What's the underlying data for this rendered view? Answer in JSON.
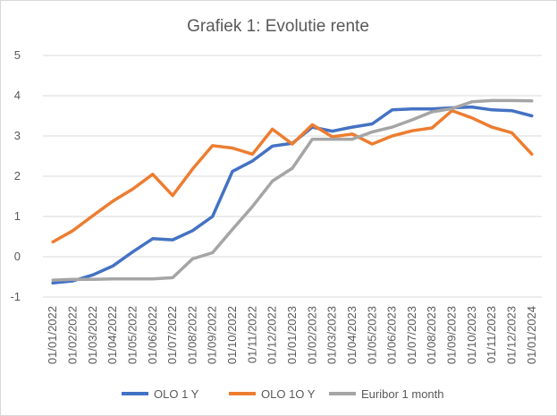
{
  "chart_data": {
    "type": "line",
    "title": "Grafiek 1: Evolutie rente",
    "xlabel": "",
    "ylabel": "",
    "ylim": [
      -1,
      5
    ],
    "y_ticks": [
      "-1",
      "0",
      "1",
      "2",
      "3",
      "4",
      "5"
    ],
    "grid": true,
    "legend_position": "bottom",
    "x": [
      "01/01/2022",
      "01/02/2022",
      "01/03/2022",
      "01/04/2022",
      "01/05/2022",
      "01/06/2022",
      "01/07/2022",
      "01/08/2022",
      "01/09/2022",
      "01/10/2022",
      "01/11/2022",
      "01/12/2022",
      "01/01/2023",
      "01/02/2023",
      "01/03/2023",
      "01/04/2023",
      "01/05/2023",
      "01/06/2023",
      "01/07/2023",
      "01/08/2023",
      "01/09/2023",
      "01/10/2023",
      "01/11/2023",
      "01/12/2023",
      "01/01/2024"
    ],
    "series": [
      {
        "name": "OLO 1 Y",
        "color": "#4472C4",
        "values": [
          -0.65,
          -0.6,
          -0.45,
          -0.23,
          0.12,
          0.45,
          0.42,
          0.65,
          1.0,
          2.12,
          2.38,
          2.75,
          2.82,
          3.22,
          3.12,
          3.22,
          3.3,
          3.65,
          3.67,
          3.67,
          3.7,
          3.72,
          3.65,
          3.63,
          3.5
        ]
      },
      {
        "name": "OLO 1O Y",
        "color": "#ED7D31",
        "values": [
          0.37,
          0.65,
          1.02,
          1.38,
          1.68,
          2.05,
          1.52,
          2.18,
          2.76,
          2.7,
          2.55,
          3.17,
          2.8,
          3.28,
          2.98,
          3.05,
          2.8,
          3.0,
          3.13,
          3.2,
          3.63,
          3.45,
          3.22,
          3.08,
          2.55
        ]
      },
      {
        "name": "Euribor 1 month",
        "color": "#A5A5A5",
        "values": [
          -0.58,
          -0.56,
          -0.56,
          -0.55,
          -0.55,
          -0.55,
          -0.52,
          -0.05,
          0.1,
          0.68,
          1.25,
          1.88,
          2.2,
          2.92,
          2.92,
          2.92,
          3.1,
          3.22,
          3.4,
          3.6,
          3.68,
          3.85,
          3.88,
          3.88,
          3.87
        ]
      }
    ]
  }
}
